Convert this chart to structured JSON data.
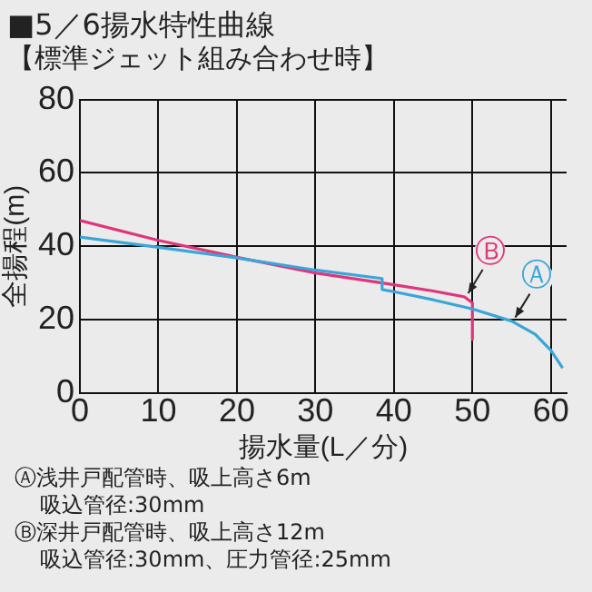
{
  "chart_data": {
    "type": "line",
    "title": "■5／6揚水特性曲線",
    "subtitle": "【標準ジェット組み合わせ時】",
    "xlabel": "揚水量(L／分)",
    "ylabel": "全揚程(m)",
    "xlim": [
      0,
      62
    ],
    "xticks": [
      0,
      10,
      20,
      30,
      40,
      50,
      60
    ],
    "ylim": [
      0,
      80
    ],
    "yticks": [
      0,
      20,
      40,
      60,
      80
    ],
    "grid": true,
    "legend": false,
    "marker": "none",
    "line_style": "solid",
    "series": [
      {
        "name": "Ⓐ",
        "color": "#3aa6d8",
        "x": [
          0,
          10,
          20,
          30,
          38.5,
          38.5,
          40,
          45,
          50,
          55,
          58,
          60,
          61.5
        ],
        "values": [
          42.5,
          39.7,
          36.8,
          33.5,
          31.2,
          28.2,
          27.6,
          25.4,
          22.9,
          19.6,
          16,
          11.6,
          6.8
        ]
      },
      {
        "name": "Ⓑ",
        "color": "#e0357a",
        "x": [
          0,
          10,
          20,
          30,
          38.5,
          40,
          45,
          49,
          50,
          50
        ],
        "values": [
          47,
          41.6,
          37,
          32.7,
          30,
          29.5,
          27.8,
          26.2,
          24.6,
          14.6
        ]
      }
    ],
    "annotations": [
      "Ⓐ浅井戸配管時、吸上高さ6m",
      "吸込管径:30mm",
      "Ⓑ深井戸配管時、吸上高さ12m",
      "吸込管径:30mm、圧力管径:25mm"
    ]
  }
}
